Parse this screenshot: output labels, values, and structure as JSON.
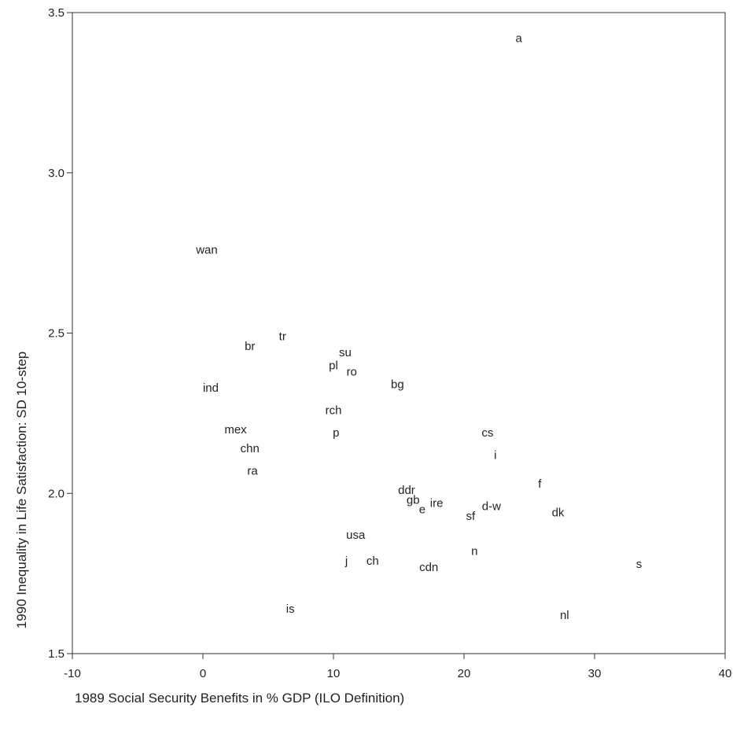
{
  "chart_data": {
    "type": "scatter",
    "marker": "text-labels",
    "xlabel": "1989 Social Security Benefits in % GDP (ILO Definition)",
    "ylabel": "1990 Inequality in Life Satisfaction: SD 10-step",
    "xlim": [
      -10,
      40
    ],
    "ylim": [
      1.5,
      3.5
    ],
    "x_ticks": [
      -10,
      0,
      10,
      20,
      30,
      40
    ],
    "y_ticks": [
      1.5,
      2.0,
      2.5,
      3.0,
      3.5
    ],
    "x_tick_labels": [
      "-10",
      "0",
      "10",
      "20",
      "30",
      "40"
    ],
    "y_tick_labels": [
      "1.5",
      "2.0",
      "2.5",
      "3.0",
      "3.5"
    ],
    "grid": false,
    "legend": "none",
    "points": [
      {
        "label": "a",
        "x": 24.2,
        "y": 3.42
      },
      {
        "label": "wan",
        "x": 0.3,
        "y": 2.76
      },
      {
        "label": "tr",
        "x": 6.1,
        "y": 2.49
      },
      {
        "label": "br",
        "x": 3.6,
        "y": 2.46
      },
      {
        "label": "su",
        "x": 10.9,
        "y": 2.44
      },
      {
        "label": "pl",
        "x": 10.0,
        "y": 2.4
      },
      {
        "label": "ro",
        "x": 11.4,
        "y": 2.38
      },
      {
        "label": "bg",
        "x": 14.9,
        "y": 2.34
      },
      {
        "label": "ind",
        "x": 0.6,
        "y": 2.33
      },
      {
        "label": "rch",
        "x": 10.0,
        "y": 2.26
      },
      {
        "label": "mex",
        "x": 2.5,
        "y": 2.2
      },
      {
        "label": "p",
        "x": 10.2,
        "y": 2.19
      },
      {
        "label": "cs",
        "x": 21.8,
        "y": 2.19
      },
      {
        "label": "chn",
        "x": 3.6,
        "y": 2.14
      },
      {
        "label": "i",
        "x": 22.4,
        "y": 2.12
      },
      {
        "label": "ra",
        "x": 3.8,
        "y": 2.07
      },
      {
        "label": "f",
        "x": 25.8,
        "y": 2.03
      },
      {
        "label": "ddr",
        "x": 15.6,
        "y": 2.01
      },
      {
        "label": "gb",
        "x": 16.1,
        "y": 1.98
      },
      {
        "label": "ire",
        "x": 17.9,
        "y": 1.97
      },
      {
        "label": "d-w",
        "x": 22.1,
        "y": 1.96
      },
      {
        "label": "e",
        "x": 16.8,
        "y": 1.95
      },
      {
        "label": "dk",
        "x": 27.2,
        "y": 1.94
      },
      {
        "label": "sf",
        "x": 20.5,
        "y": 1.93
      },
      {
        "label": "usa",
        "x": 11.7,
        "y": 1.87
      },
      {
        "label": "n",
        "x": 20.8,
        "y": 1.82
      },
      {
        "label": "j",
        "x": 11.0,
        "y": 1.79
      },
      {
        "label": "ch",
        "x": 13.0,
        "y": 1.79
      },
      {
        "label": "cdn",
        "x": 17.3,
        "y": 1.77
      },
      {
        "label": "s",
        "x": 33.4,
        "y": 1.78
      },
      {
        "label": "is",
        "x": 6.7,
        "y": 1.64
      },
      {
        "label": "nl",
        "x": 27.7,
        "y": 1.62
      }
    ]
  }
}
